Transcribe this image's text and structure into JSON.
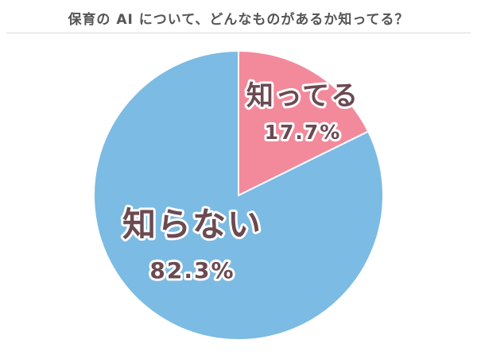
{
  "chart_data": {
    "type": "pie",
    "title": "保育の AI について、どんなものがあるか知ってる？",
    "categories": [
      "知ってる",
      "知らない"
    ],
    "values": [
      17.7,
      82.3
    ],
    "value_labels": [
      "17.7%",
      "82.3%"
    ],
    "colors": [
      "#f38a9c",
      "#7cbbe3"
    ],
    "legend": "none",
    "grid": false
  }
}
